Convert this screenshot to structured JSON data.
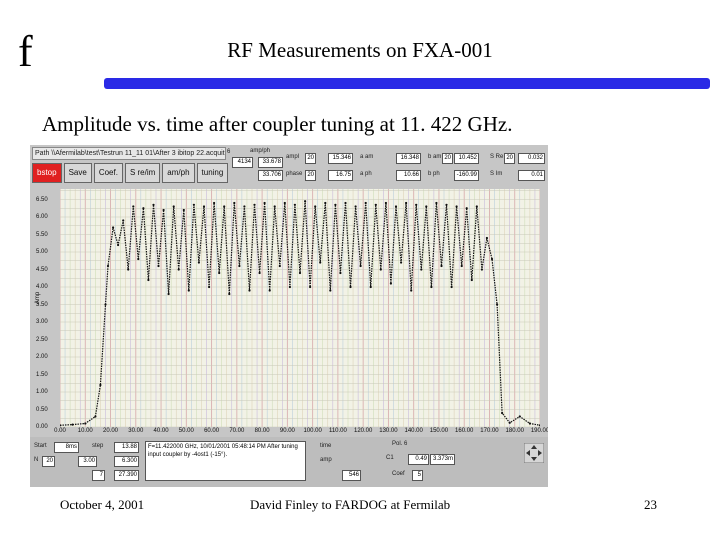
{
  "slide": {
    "logo": "f",
    "title": "RF Measurements on FXA-001",
    "subtitle": "Amplitude vs. time after coupler tuning at 11. 422 GHz.",
    "footer_date": "October 4, 2001",
    "footer_author": "David Finley to FARDOG at Fermilab",
    "page_number": "23",
    "accent_color": "#2a2ae6"
  },
  "app": {
    "path": "Path \\\\Afermilab\\test\\Testrun 11_11 01\\After 3 ibitop 22.acquit",
    "path_index": "6",
    "buttons": [
      "bstop",
      "Save",
      "Coef.",
      "S re/im",
      "am/ph",
      "tuning"
    ],
    "controls": {
      "amp_label": "amp/ph",
      "amp_val1": "33.678",
      "amp_val2": "33.706",
      "field_4134": "4134",
      "ampl_label": "ampl",
      "ampl_val": "15.346",
      "phase_label": "phase",
      "phase_val": "16.75",
      "a_am_label": "a am",
      "a_am_val": "16.348",
      "a_ph_label": "a ph",
      "a_ph_val": "10.66",
      "b_am_label": "b am",
      "b_am_val": "10.452",
      "b_ph_label": "b ph",
      "b_ph_val": "-160.99",
      "s_re_label": "S Re",
      "s_re_val": "0.032",
      "s_im_label": "S Im",
      "s_im_val": "0.01",
      "val_20": "20"
    },
    "message": "F=11.422000 GHz, 10/01/2001 05:48:14 PM After tuning input coupler by -4ost1 (-15°).",
    "bottom_fields": {
      "start": "Start",
      "start_val": "8ms",
      "n_label": "N",
      "n_val": "20",
      "step_label": "step",
      "step_val": "13.88",
      "x_val": "3.00",
      "x2_val": "6.300",
      "z_val": "7",
      "z2_val": "27.390",
      "time_label": "time",
      "amp2_label": "amp",
      "val_546": "546",
      "pol_label": "Pol. 6",
      "c1_label": "C1",
      "c1_val": "0.49",
      "c1_val2": "3.373m",
      "coef_label": "Coef",
      "coef_val": "5"
    }
  },
  "chart_data": {
    "type": "line",
    "xlim": [
      0,
      190
    ],
    "ylim": [
      0,
      6.8
    ],
    "x_ticks": [
      "0.00",
      "10.00",
      "20.00",
      "30.00",
      "40.00",
      "50.00",
      "60.00",
      "70.00",
      "80.00",
      "90.00",
      "100.00",
      "110.00",
      "120.00",
      "130.00",
      "140.00",
      "150.00",
      "160.00",
      "170.00",
      "180.00",
      "190.00"
    ],
    "y_ticks": [
      "0.00",
      "0.50",
      "1.00",
      "1.50",
      "2.00",
      "2.50",
      "3.00",
      "3.50",
      "4.00",
      "4.50",
      "5.00",
      "5.50",
      "6.00",
      "6.50"
    ],
    "ylabel": "Amp",
    "grid": true,
    "series": [
      {
        "color": "#111111",
        "x": [
          0,
          5,
          10,
          14,
          16,
          18,
          19,
          21,
          23,
          25,
          27,
          29,
          31,
          33,
          35,
          37,
          39,
          41,
          43,
          45,
          47,
          49,
          51,
          53,
          55,
          57,
          59,
          61,
          63,
          65,
          67,
          69,
          71,
          73,
          75,
          77,
          79,
          81,
          83,
          85,
          87,
          89,
          91,
          93,
          95,
          97,
          99,
          101,
          103,
          105,
          107,
          109,
          111,
          113,
          115,
          117,
          119,
          121,
          123,
          125,
          127,
          129,
          131,
          133,
          135,
          137,
          139,
          141,
          143,
          145,
          147,
          149,
          151,
          153,
          155,
          157,
          159,
          161,
          163,
          165,
          167,
          169,
          171,
          173,
          175,
          178,
          182,
          186,
          190
        ],
        "y": [
          0.05,
          0.07,
          0.1,
          0.3,
          1.2,
          3.5,
          4.6,
          5.7,
          5.2,
          5.9,
          4.5,
          6.3,
          4.8,
          6.25,
          4.2,
          6.35,
          4.6,
          6.2,
          3.8,
          6.3,
          4.5,
          6.2,
          3.9,
          6.35,
          4.7,
          6.3,
          4.0,
          6.4,
          4.4,
          6.3,
          3.8,
          6.4,
          4.6,
          6.3,
          3.9,
          6.35,
          4.4,
          6.4,
          3.9,
          6.3,
          4.6,
          6.4,
          4.0,
          6.35,
          4.4,
          6.45,
          4.0,
          6.3,
          4.7,
          6.4,
          3.9,
          6.35,
          4.4,
          6.4,
          4.0,
          6.3,
          4.6,
          6.4,
          4.0,
          6.35,
          4.5,
          6.4,
          4.1,
          6.3,
          4.7,
          6.4,
          3.9,
          6.35,
          4.5,
          6.3,
          4.0,
          6.4,
          4.6,
          6.35,
          4.0,
          6.3,
          4.6,
          6.25,
          4.2,
          6.3,
          4.5,
          5.4,
          4.8,
          3.5,
          0.4,
          0.12,
          0.3,
          0.1,
          0.05
        ]
      }
    ]
  }
}
